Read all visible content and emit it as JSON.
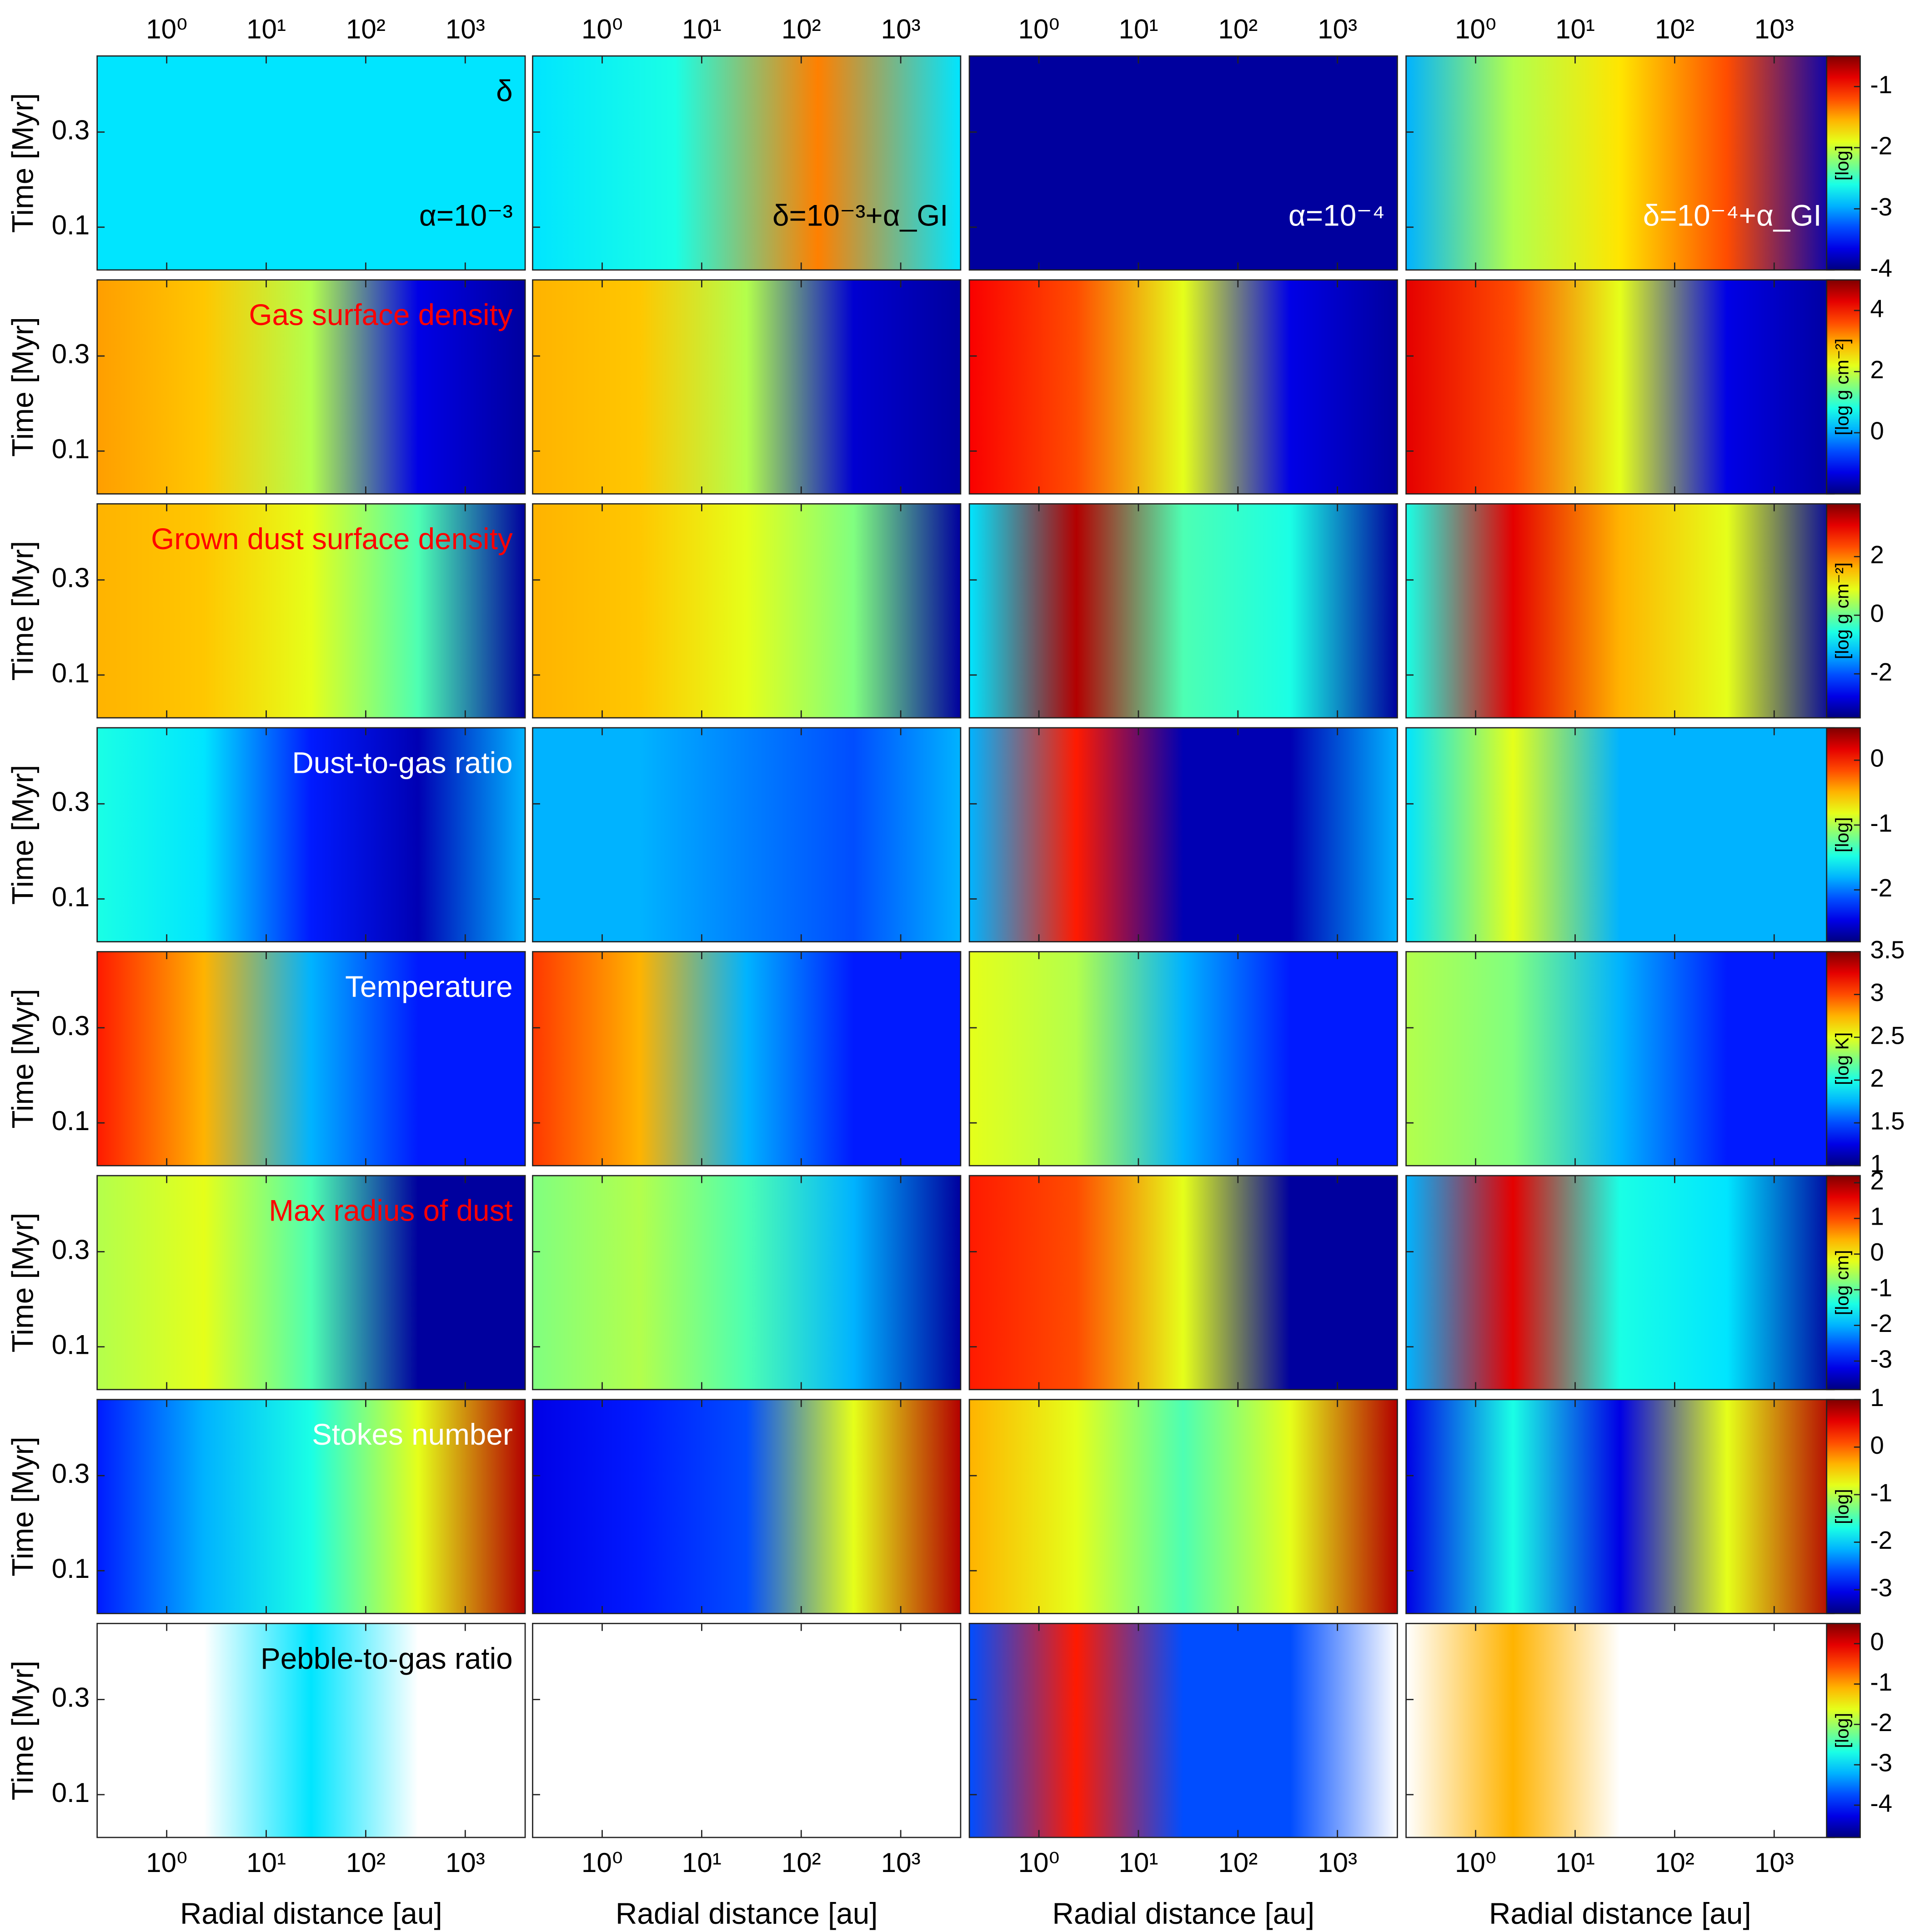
{
  "chart_data": {
    "type": "heatmap",
    "xlabel": "Radial distance [au]",
    "ylabel": "Time [Myr]",
    "xscale": "log",
    "xlim": [
      0.2,
      4000
    ],
    "xticks": [
      {
        "value": 1,
        "label": "10⁰"
      },
      {
        "value": 10,
        "label": "10¹"
      },
      {
        "value": 100,
        "label": "10²"
      },
      {
        "value": 1000,
        "label": "10³"
      }
    ],
    "ylim": [
      0.01,
      0.46
    ],
    "yticks": [
      0.1,
      0.3
    ],
    "colormap": "jet",
    "columns": [
      "α=10⁻³",
      "δ=10⁻³+α_GI",
      "α=10⁻⁴",
      "δ=10⁻⁴+α_GI"
    ],
    "column_label_colors": [
      "#000000",
      "#000000",
      "#ffffff",
      "#ffffff"
    ],
    "rows": [
      {
        "label": "δ",
        "label_color": "#000000",
        "colorbar_label": "[log]",
        "clim": [
          -4,
          -0.5
        ],
        "cticks": [
          -1,
          -2,
          -3,
          -4
        ]
      },
      {
        "label": "Gas surface density",
        "label_color": "#ff0000",
        "colorbar_label": "[log g cm⁻²]",
        "clim": [
          -2,
          5
        ],
        "cticks": [
          4,
          2,
          0
        ]
      },
      {
        "label": "Grown dust surface density",
        "label_color": "#ff0000",
        "colorbar_label": "[log g cm⁻²]",
        "clim": [
          -3.5,
          3.8
        ],
        "cticks": [
          2,
          0,
          -2
        ]
      },
      {
        "label": "Dust-to-gas ratio",
        "label_color": "#ffffff",
        "colorbar_label": "[log]",
        "clim": [
          -2.8,
          0.5
        ],
        "cticks": [
          0,
          -1,
          -2
        ]
      },
      {
        "label": "Temperature",
        "label_color": "#ffffff",
        "colorbar_label": "[log K]",
        "clim": [
          1,
          3.5
        ],
        "cticks": [
          3.5,
          3,
          2.5,
          2,
          1.5,
          1
        ]
      },
      {
        "label": "Max radius of dust",
        "label_color": "#ff0000",
        "colorbar_label": "[log cm]",
        "clim": [
          -3.8,
          2.2
        ],
        "cticks": [
          2,
          1,
          0,
          -1,
          -2,
          -3
        ]
      },
      {
        "label": "Stokes number",
        "label_color": "#ffffff",
        "colorbar_label": "[log]",
        "clim": [
          -3.5,
          1
        ],
        "cticks": [
          1,
          0,
          -1,
          -2,
          -3
        ]
      },
      {
        "label": "Pebble-to-gas ratio",
        "label_color": "#000000",
        "colorbar_label": "[log]",
        "clim": [
          -4.8,
          0.5
        ],
        "cticks": [
          0,
          -1,
          -2,
          -3,
          -4
        ]
      }
    ]
  }
}
